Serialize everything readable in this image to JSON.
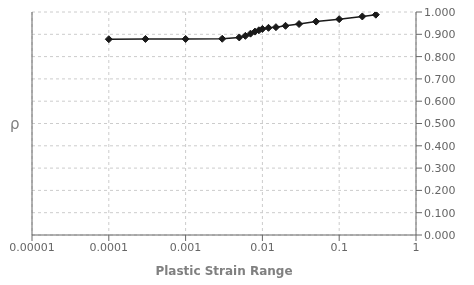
{
  "chart_data": {
    "type": "line",
    "x": [
      0.0001,
      0.0003,
      0.001,
      0.003,
      0.005,
      0.006,
      0.007,
      0.008,
      0.009,
      0.01,
      0.012,
      0.015,
      0.02,
      0.03,
      0.05,
      0.1,
      0.2,
      0.3
    ],
    "values": [
      0.878,
      0.879,
      0.879,
      0.88,
      0.886,
      0.893,
      0.903,
      0.912,
      0.918,
      0.924,
      0.929,
      0.932,
      0.938,
      0.946,
      0.957,
      0.968,
      0.98,
      0.988
    ],
    "color": "#1a1a1a",
    "marker": "diamond",
    "xlabel": "Plastic Strain Range",
    "ylabel": "ρ",
    "xlim": [
      1e-05,
      1
    ],
    "ylim": [
      0.0,
      1.0
    ],
    "xticks": [
      1e-05,
      0.0001,
      0.001,
      0.01,
      0.1,
      1
    ],
    "yticks": [
      {
        "value": 0.0,
        "label": "0.000"
      },
      {
        "value": 0.1,
        "label": "0.100"
      },
      {
        "value": 0.2,
        "label": "0.200"
      },
      {
        "value": 0.3,
        "label": "0.300"
      },
      {
        "value": 0.4,
        "label": "0.400"
      },
      {
        "value": 0.5,
        "label": "0.500"
      },
      {
        "value": 0.6,
        "label": "0.600"
      },
      {
        "value": 0.7,
        "label": "0.700"
      },
      {
        "value": 0.8,
        "label": "0.800"
      },
      {
        "value": 0.9,
        "label": "0.900"
      },
      {
        "value": 1.0,
        "label": "1.000"
      }
    ],
    "log": "x",
    "grid": true
  }
}
